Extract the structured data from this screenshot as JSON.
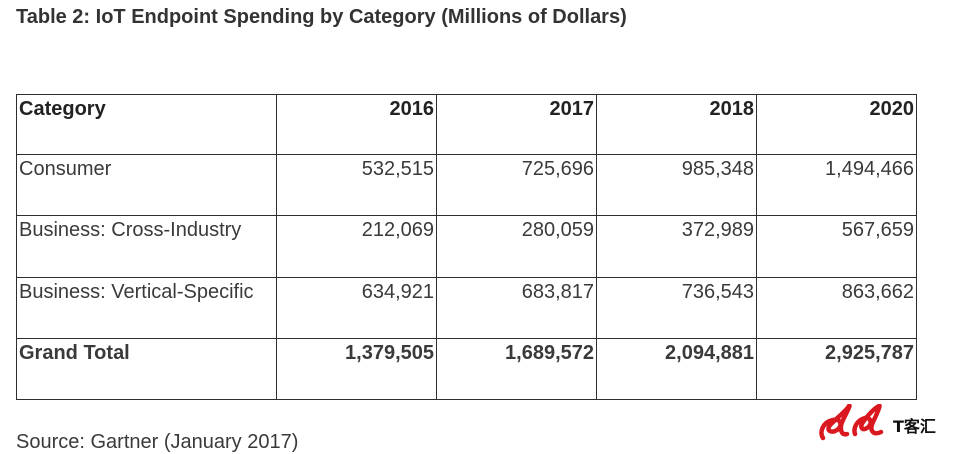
{
  "title": "Table 2: IoT Endpoint Spending by Category (Millions of Dollars)",
  "table": {
    "headers": [
      "Category",
      "2016",
      "2017",
      "2018",
      "2020"
    ],
    "rows": [
      [
        "Consumer",
        "532,515",
        "725,696",
        "985,348",
        "1,494,466"
      ],
      [
        "Business: Cross-Industry",
        "212,069",
        "280,059",
        "372,989",
        "567,659"
      ],
      [
        "Business: Vertical-Specific",
        "634,921",
        "683,817",
        "736,543",
        "863,662"
      ]
    ],
    "total": [
      "Grand Total",
      "1,379,505",
      "1,689,572",
      "2,094,881",
      "2,925,787"
    ]
  },
  "source": "Source: Gartner (January 2017)",
  "watermark": {
    "text": "T客汇",
    "color": "#d9181f"
  }
}
